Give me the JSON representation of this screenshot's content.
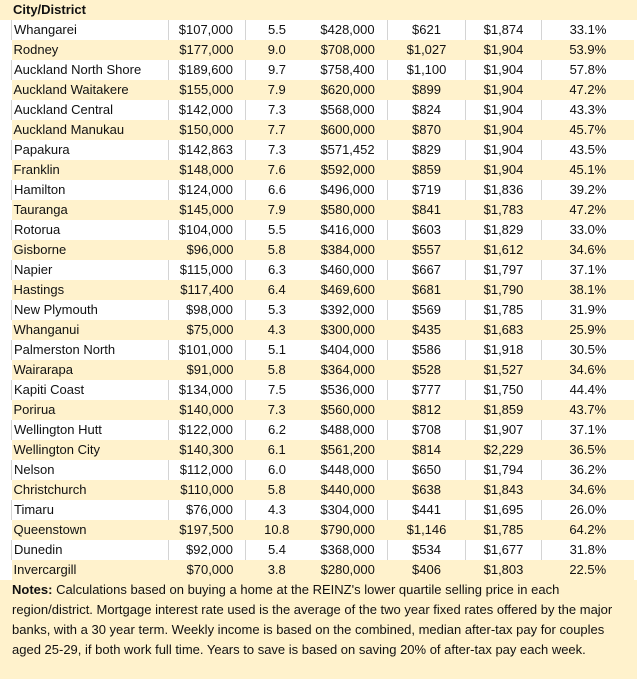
{
  "header": {
    "city_label": "City/District"
  },
  "rows": [
    [
      "Whangarei",
      "$107,000",
      "5.5",
      "$428,000",
      "$621",
      "$1,874",
      "33.1%"
    ],
    [
      "Rodney",
      "$177,000",
      "9.0",
      "$708,000",
      "$1,027",
      "$1,904",
      "53.9%"
    ],
    [
      "Auckland North Shore",
      "$189,600",
      "9.7",
      "$758,400",
      "$1,100",
      "$1,904",
      "57.8%"
    ],
    [
      "Auckland Waitakere",
      "$155,000",
      "7.9",
      "$620,000",
      "$899",
      "$1,904",
      "47.2%"
    ],
    [
      "Auckland Central",
      "$142,000",
      "7.3",
      "$568,000",
      "$824",
      "$1,904",
      "43.3%"
    ],
    [
      "Auckland Manukau",
      "$150,000",
      "7.7",
      "$600,000",
      "$870",
      "$1,904",
      "45.7%"
    ],
    [
      "Papakura",
      "$142,863",
      "7.3",
      "$571,452",
      "$829",
      "$1,904",
      "43.5%"
    ],
    [
      "Franklin",
      "$148,000",
      "7.6",
      "$592,000",
      "$859",
      "$1,904",
      "45.1%"
    ],
    [
      "Hamilton",
      "$124,000",
      "6.6",
      "$496,000",
      "$719",
      "$1,836",
      "39.2%"
    ],
    [
      "Tauranga",
      "$145,000",
      "7.9",
      "$580,000",
      "$841",
      "$1,783",
      "47.2%"
    ],
    [
      "Rotorua",
      "$104,000",
      "5.5",
      "$416,000",
      "$603",
      "$1,829",
      "33.0%"
    ],
    [
      "Gisborne",
      "$96,000",
      "5.8",
      "$384,000",
      "$557",
      "$1,612",
      "34.6%"
    ],
    [
      "Napier",
      "$115,000",
      "6.3",
      "$460,000",
      "$667",
      "$1,797",
      "37.1%"
    ],
    [
      "Hastings",
      "$117,400",
      "6.4",
      "$469,600",
      "$681",
      "$1,790",
      "38.1%"
    ],
    [
      "New Plymouth",
      "$98,000",
      "5.3",
      "$392,000",
      "$569",
      "$1,785",
      "31.9%"
    ],
    [
      "Whanganui",
      "$75,000",
      "4.3",
      "$300,000",
      "$435",
      "$1,683",
      "25.9%"
    ],
    [
      "Palmerston North",
      "$101,000",
      "5.1",
      "$404,000",
      "$586",
      "$1,918",
      "30.5%"
    ],
    [
      "Wairarapa",
      "$91,000",
      "5.8",
      "$364,000",
      "$528",
      "$1,527",
      "34.6%"
    ],
    [
      "Kapiti Coast",
      "$134,000",
      "7.5",
      "$536,000",
      "$777",
      "$1,750",
      "44.4%"
    ],
    [
      "Porirua",
      "$140,000",
      "7.3",
      "$560,000",
      "$812",
      "$1,859",
      "43.7%"
    ],
    [
      "Wellington Hutt",
      "$122,000",
      "6.2",
      "$488,000",
      "$708",
      "$1,907",
      "37.1%"
    ],
    [
      "Wellington City",
      "$140,300",
      "6.1",
      "$561,200",
      "$814",
      "$2,229",
      "36.5%"
    ],
    [
      "Nelson",
      "$112,000",
      "6.0",
      "$448,000",
      "$650",
      "$1,794",
      "36.2%"
    ],
    [
      "Christchurch",
      "$110,000",
      "5.8",
      "$440,000",
      "$638",
      "$1,843",
      "34.6%"
    ],
    [
      "Timaru",
      "$76,000",
      "4.3",
      "$304,000",
      "$441",
      "$1,695",
      "26.0%"
    ],
    [
      "Queenstown",
      "$197,500",
      "10.8",
      "$790,000",
      "$1,146",
      "$1,785",
      "64.2%"
    ],
    [
      "Dunedin",
      "$92,000",
      "5.4",
      "$368,000",
      "$534",
      "$1,677",
      "31.8%"
    ],
    [
      "Invercargill",
      "$70,000",
      "3.8",
      "$280,000",
      "$406",
      "$1,803",
      "22.5%"
    ]
  ],
  "notes": {
    "label": "Notes:",
    "text": " Calculations based on buying a home at the REINZ's lower quartile selling price in each region/district. Mortgage interest rate used is the average of the two year fixed rates offered by the major banks, with a 30 year term. Weekly income is based on the combined, median after-tax pay for couples aged 25-29, if both work full time. Years to save is based on saving 20% of after-tax pay each week."
  }
}
